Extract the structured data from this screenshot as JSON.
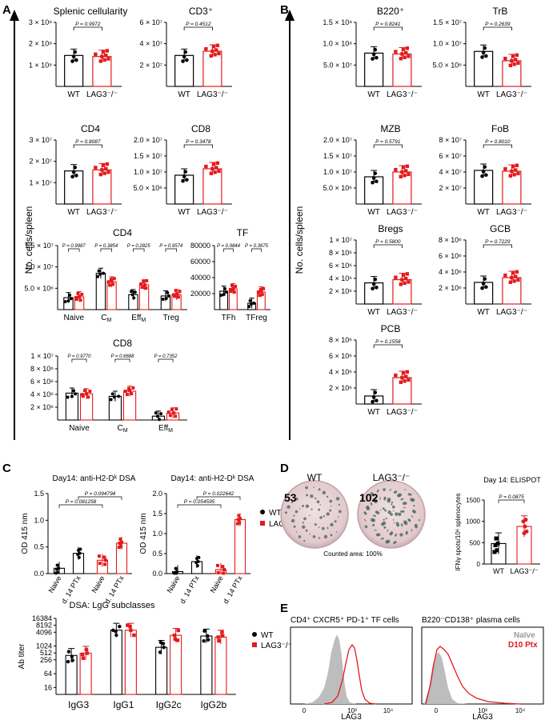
{
  "colors": {
    "wt": "#000000",
    "ko": "#e31a1c",
    "grey": "#b3b3b3",
    "well_bg": "#e9d3d6",
    "spot": "#4a6b5a"
  },
  "panel_letters": {
    "a": "A",
    "b": "B",
    "c": "C",
    "d": "D",
    "e": "E"
  },
  "shared": {
    "ylabel_cells": "No. cells/spleen",
    "wt": "WT",
    "ko": "LAG3⁻/⁻"
  },
  "panel_a": {
    "splenic": {
      "title": "Splenic cellularity",
      "ticks": [
        "1 × 10⁸",
        "2 × 10⁸",
        "3 × 10⁸"
      ],
      "ylim": [
        0,
        300000000.0
      ],
      "p": "P = 0.9972",
      "wt_mean": 145000000.0,
      "ko_mean": 140000000.0
    },
    "cd3": {
      "title": "CD3⁺",
      "ticks": [
        "2 × 10⁷",
        "4 × 10⁷",
        "6 × 10⁷"
      ],
      "ylim": [
        0,
        60000000.0
      ],
      "p": "P = 0.4512",
      "wt_mean": 29000000.0,
      "ko_mean": 33000000.0
    },
    "cd4": {
      "title": "CD4",
      "ticks": [
        "1 × 10⁷",
        "2 × 10⁷",
        "3 × 10⁷"
      ],
      "ylim": [
        0,
        30000000.0
      ],
      "p": "P = 0.8087",
      "wt_mean": 15500000.0,
      "ko_mean": 16000000.0
    },
    "cd8": {
      "title": "CD8",
      "ticks": [
        "5.0 × 10⁶",
        "1.0 × 10⁷",
        "1.5 × 10⁷",
        "2.0 × 10⁷"
      ],
      "ylim": [
        0,
        20000000.0
      ],
      "p": "P = 0.3478",
      "wt_mean": 9000000.0,
      "ko_mean": 11000000.0
    },
    "cd4_sub": {
      "title": "CD4",
      "ticks": [
        "5.0 × 10⁶",
        "1.0 × 10⁷",
        "1.5 × 10⁷"
      ],
      "ylim": [
        0,
        15000000.0
      ],
      "categories": [
        "Naive",
        "CM",
        "EffM",
        "Treg"
      ],
      "p": [
        "P = 0.9987",
        "P = 0.3854",
        "P = 0.2825",
        "P = 0.9574"
      ],
      "wt_means": [
        2800000.0,
        8500000.0,
        3500000.0,
        3200000.0
      ],
      "ko_means": [
        3000000.0,
        6500000.0,
        5800000.0,
        3500000.0
      ]
    },
    "tf": {
      "title": "TF",
      "ticks": [
        "20000",
        "40000",
        "60000",
        "80000"
      ],
      "ylim": [
        0,
        80000
      ],
      "categories": [
        "TFh",
        "TFreg"
      ],
      "p": [
        "P = 0.9844",
        "P = 0.3675"
      ],
      "wt_means": [
        23000,
        8000
      ],
      "ko_means": [
        26000,
        22000
      ]
    },
    "cd8_sub": {
      "title": "CD8",
      "ticks": [
        "2 × 10⁶",
        "4 × 10⁶",
        "6 × 10⁶",
        "8 × 10⁶",
        "1 × 10⁷"
      ],
      "ylim": [
        0,
        10000000.0
      ],
      "categories": [
        "Naive",
        "CM",
        "EffM"
      ],
      "p": [
        "P = 0.9770",
        "P = 0.6688",
        "P = 0.7352"
      ],
      "wt_means": [
        4200000.0,
        3700000.0,
        600000.0
      ],
      "ko_means": [
        4100000.0,
        4500000.0,
        1100000.0
      ]
    }
  },
  "panel_b": {
    "b220": {
      "title": "B220⁺",
      "ticks": [
        "5.0 × 10⁷",
        "1.0 × 10⁸",
        "1.5 × 10⁸"
      ],
      "ylim": [
        0,
        150000000.0
      ],
      "p": "P = 0.8241",
      "wt_mean": 78000000.0,
      "ko_mean": 76000000.0
    },
    "trb": {
      "title": "TrB",
      "ticks": [
        "5.0 × 10⁶",
        "1.0 × 10⁷",
        "1.5 × 10⁷"
      ],
      "ylim": [
        0,
        15000000.0
      ],
      "p": "P = 0.2639",
      "wt_mean": 8200000.0,
      "ko_mean": 6000000.0
    },
    "mzb": {
      "title": "MZB",
      "ticks": [
        "5.0 × 10⁶",
        "1.0 × 10⁷",
        "1.5 × 10⁷",
        "2.0 × 10⁷"
      ],
      "ylim": [
        0,
        20000000.0
      ],
      "p": "P = 0.5791",
      "wt_mean": 8500000.0,
      "ko_mean": 10000000.0
    },
    "fob": {
      "title": "FoB",
      "ticks": [
        "2 × 10⁷",
        "4 × 10⁷",
        "6 × 10⁷",
        "8 × 10⁷"
      ],
      "ylim": [
        0,
        80000000.0
      ],
      "p": "P = 0.8010",
      "wt_mean": 42000000.0,
      "ko_mean": 41000000.0
    },
    "bregs": {
      "title": "Bregs",
      "ticks": [
        "2 × 10⁶",
        "4 × 10⁶",
        "6 × 10⁶",
        "8 × 10⁶",
        "1 × 10⁷"
      ],
      "ylim": [
        0,
        10000000.0
      ],
      "p": "P = 0.5800",
      "wt_mean": 3300000.0,
      "ko_mean": 3800000.0
    },
    "gcb": {
      "title": "GCB",
      "ticks": [
        "2 × 10⁶",
        "4 × 10⁶",
        "6 × 10⁶",
        "8 × 10⁶"
      ],
      "ylim": [
        0,
        8000000.0
      ],
      "p": "P = 0.7229",
      "wt_mean": 2700000.0,
      "ko_mean": 3300000.0
    },
    "pcb": {
      "title": "PCB",
      "ticks": [
        "2 × 10⁶",
        "4 × 10⁶",
        "6 × 10⁶",
        "8 × 10⁶"
      ],
      "ylim": [
        0,
        8000000.0
      ],
      "p": "P = 0.1558",
      "wt_mean": 1000000.0,
      "ko_mean": 3300000.0
    }
  },
  "panel_c": {
    "dsa1": {
      "title": "Day14: anti-H2-Dᵏ DSA",
      "ylabel": "OD 415 nm",
      "ticks": [
        "0.0",
        "0.5",
        "1.0",
        "1.5"
      ],
      "ylim": [
        0,
        1.5
      ],
      "xlabels": [
        "Naive",
        "d. 14 PTx",
        "Naive",
        "d. 14 PTx"
      ],
      "means": [
        0.1,
        0.38,
        0.25,
        0.57
      ],
      "p": [
        "P = 0.081258",
        "P = 0.094794"
      ]
    },
    "dsa2": {
      "title": "Day14: anti-H2-Dᵏ DSA",
      "ylabel": "OD 415 nm",
      "ticks": [
        "0.0",
        "0.5",
        "1.0",
        "1.5",
        "2.0"
      ],
      "ylim": [
        0,
        2.0
      ],
      "xlabels": [
        "Naive",
        "d. 14 PTx",
        "Naive",
        "d. 14 PTx"
      ],
      "means": [
        0.05,
        0.3,
        0.1,
        1.35
      ],
      "p": [
        "P = 0.054595",
        "P = 0.022642"
      ]
    },
    "legend_wt": "WT",
    "legend_ko": "LAG3⁻/⁻",
    "igg": {
      "title": "DSA: LgG subclasses",
      "ylabel": "Ab titer",
      "ticks": [
        "16",
        "64",
        "256",
        "512",
        "1024",
        "4096",
        "8192",
        "16384"
      ],
      "tick_values": [
        16,
        64,
        256,
        512,
        1024,
        4096,
        8192,
        16384
      ],
      "categories": [
        "IgG3",
        "IgG1",
        "IgG2c",
        "IgG2b"
      ],
      "wt_means": [
        400,
        5000,
        900,
        2800
      ],
      "ko_means": [
        500,
        5000,
        3000,
        2500
      ]
    }
  },
  "panel_d": {
    "wt_label": "WT",
    "ko_label": "LAG3⁻/⁻",
    "wt_count": "53",
    "ko_count": "102",
    "counted_area": "Counted area: 100%",
    "elispot_title": "Day 14: ELISPOT",
    "ylabel": "IFNγ spots/10⁶ splenocytes",
    "ticks": [
      "0",
      "500",
      "1000",
      "1500"
    ],
    "ylim": [
      0,
      1500
    ],
    "p": "P = 0.0875",
    "wt_mean": 480,
    "ko_mean": 880
  },
  "panel_e": {
    "title1": "CD4⁺ CXCR5⁺ PD-1⁺ TF cells",
    "title2": "B220⁻CD138⁺ plasma cells",
    "legend_naive": "Naïve",
    "legend_d10": "D10 Ptx",
    "xlabel": "LAG3",
    "xticks": [
      "0",
      "10³",
      "10⁴"
    ]
  }
}
